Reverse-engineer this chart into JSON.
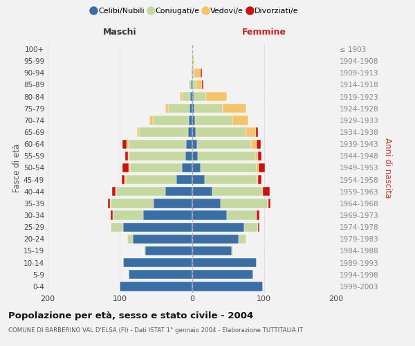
{
  "age_groups": [
    "0-4",
    "5-9",
    "10-14",
    "15-19",
    "20-24",
    "25-29",
    "30-34",
    "35-39",
    "40-44",
    "45-49",
    "50-54",
    "55-59",
    "60-64",
    "65-69",
    "70-74",
    "75-79",
    "80-84",
    "85-89",
    "90-94",
    "95-99",
    "100+"
  ],
  "birth_years": [
    "1999-2003",
    "1994-1998",
    "1989-1993",
    "1984-1988",
    "1979-1983",
    "1974-1978",
    "1969-1973",
    "1964-1968",
    "1959-1963",
    "1954-1958",
    "1949-1953",
    "1944-1948",
    "1939-1943",
    "1934-1938",
    "1929-1933",
    "1924-1928",
    "1919-1923",
    "1914-1918",
    "1909-1913",
    "1904-1908",
    "≤ 1903"
  ],
  "males_celibi": [
    100,
    88,
    95,
    65,
    82,
    95,
    68,
    53,
    37,
    22,
    14,
    9,
    8,
    5,
    4,
    3,
    2,
    1,
    0,
    0,
    0
  ],
  "males_coniugati": [
    0,
    0,
    0,
    2,
    8,
    18,
    42,
    60,
    68,
    70,
    72,
    78,
    80,
    68,
    50,
    30,
    12,
    3,
    1,
    0,
    0
  ],
  "males_vedovi": [
    0,
    0,
    0,
    0,
    0,
    0,
    0,
    1,
    1,
    2,
    2,
    2,
    3,
    3,
    5,
    4,
    3,
    0,
    0,
    0,
    0
  ],
  "males_divorziati": [
    0,
    0,
    0,
    0,
    0,
    0,
    3,
    3,
    5,
    3,
    8,
    4,
    5,
    0,
    0,
    0,
    0,
    0,
    0,
    0,
    0
  ],
  "females_nubili": [
    98,
    85,
    90,
    55,
    65,
    72,
    48,
    40,
    28,
    18,
    12,
    8,
    7,
    5,
    4,
    3,
    2,
    1,
    0,
    0,
    0
  ],
  "females_coniugate": [
    0,
    0,
    0,
    2,
    10,
    20,
    42,
    65,
    68,
    72,
    78,
    80,
    75,
    70,
    52,
    40,
    18,
    5,
    3,
    1,
    0
  ],
  "females_vedove": [
    0,
    0,
    0,
    0,
    0,
    0,
    0,
    1,
    2,
    2,
    3,
    4,
    8,
    14,
    22,
    32,
    28,
    8,
    9,
    2,
    0
  ],
  "females_divorziate": [
    0,
    0,
    0,
    0,
    0,
    2,
    4,
    3,
    10,
    4,
    8,
    4,
    5,
    3,
    0,
    0,
    0,
    2,
    2,
    0,
    0
  ],
  "color_celibi": "#3a6ea5",
  "color_coniugati": "#c5d8a0",
  "color_vedovi": "#f5c469",
  "color_divorziati": "#cc1111",
  "title": "Popolazione per età, sesso e stato civile - 2004",
  "subtitle": "COMUNE DI BARBERINO VAL D'ELSA (FI) - Dati ISTAT 1° gennaio 2004 - Elaborazione TUTTITALIA.IT",
  "ylabel_left": "Fasce di età",
  "ylabel_right": "Anni di nascita",
  "label_maschi": "Maschi",
  "label_femmine": "Femmine",
  "xlim": 200,
  "bg_color": "#f2f2f2",
  "legend_labels": [
    "Celibi/Nubili",
    "Coniugati/e",
    "Vedovi/e",
    "Divorziati/e"
  ]
}
